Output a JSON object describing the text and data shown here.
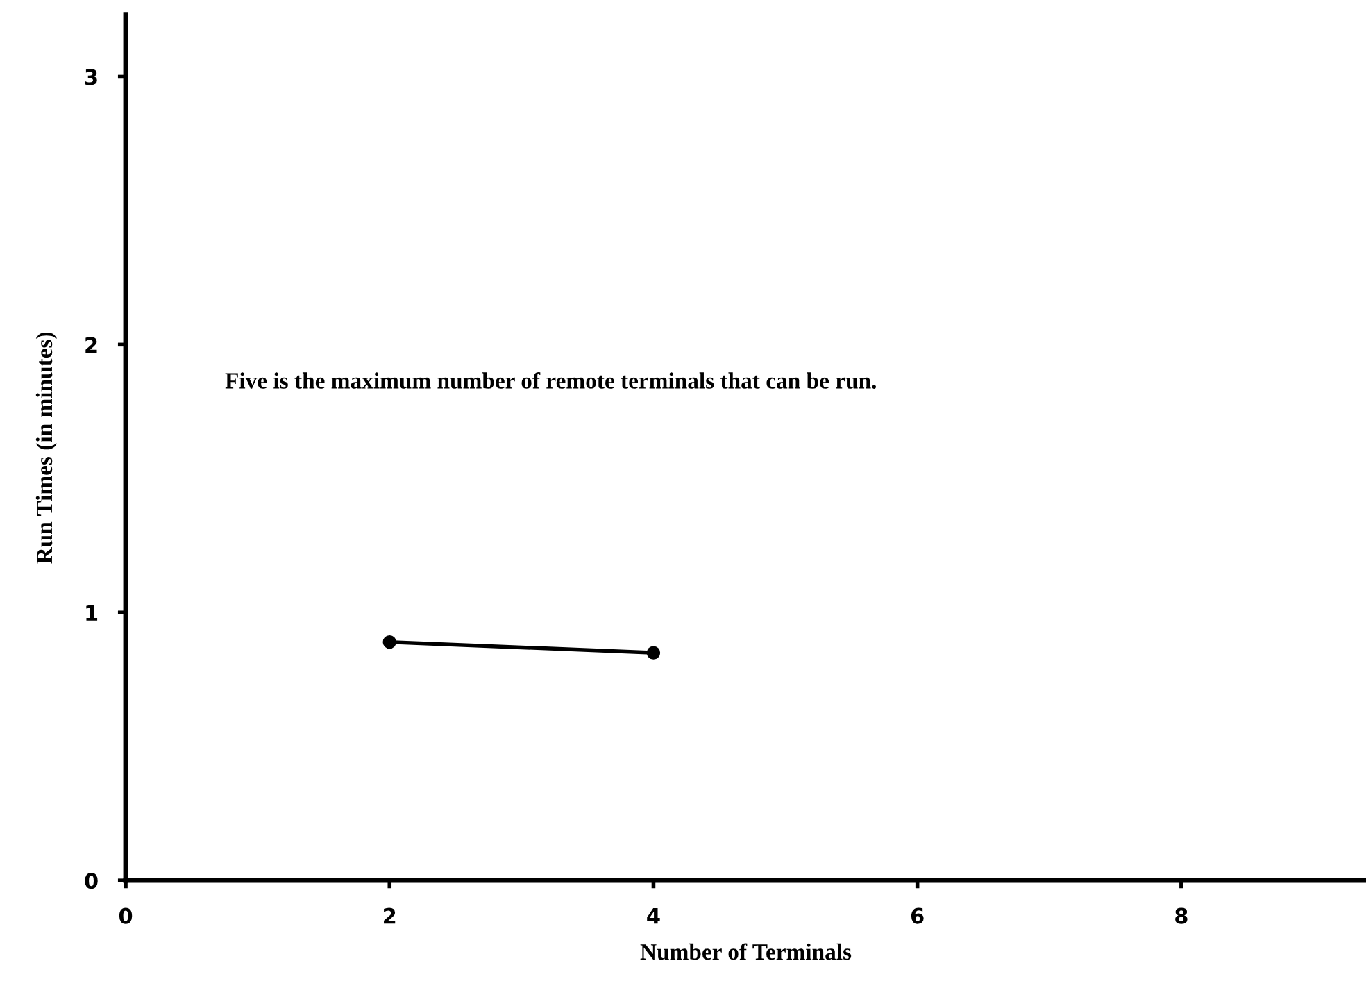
{
  "chart_data": {
    "type": "line",
    "xlabel": "Number of Terminals",
    "ylabel": "Run Times (in minutes)",
    "x": [
      2,
      4
    ],
    "series": [
      {
        "color": "#000000",
        "values": [
          0.89,
          0.85
        ]
      }
    ],
    "xlim": [
      0,
      9.4
    ],
    "ylim": [
      0,
      3.23
    ],
    "xticks": [
      0,
      2,
      4,
      6,
      8
    ],
    "yticks": [
      0,
      1,
      2,
      3
    ],
    "marker": "circle",
    "line_style": "solid",
    "grid": false,
    "annotations": [
      "Five is the maximum number of remote terminals that can be run."
    ]
  }
}
